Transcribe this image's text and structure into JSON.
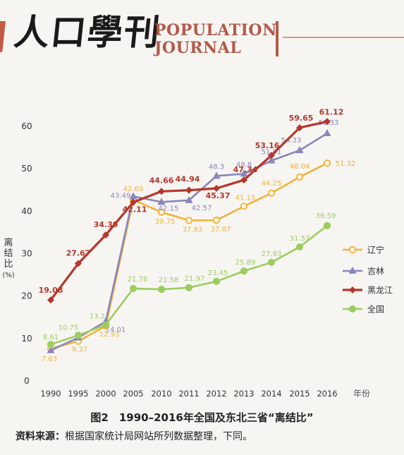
{
  "header": {
    "logo_cn": "人口學刊",
    "logo_en_line1": "POPULATION",
    "logo_en_line2": "JOURNAL"
  },
  "figure": {
    "caption": "图2　1990–2016年全国及东北三省“离结比”",
    "source_label": "资料来源：",
    "source_text": "根据国家统计局网站所列数据整理，下同。"
  },
  "chart_data": {
    "type": "line",
    "categories": [
      "1990",
      "1995",
      "2000",
      "2005",
      "2010",
      "2011",
      "2012",
      "2013",
      "2014",
      "2015",
      "2016"
    ],
    "ylabel": "离结比（%）",
    "xlabel": "年份",
    "ylim": [
      0,
      60
    ],
    "yticks": [
      0,
      10,
      20,
      30,
      40,
      50,
      60
    ],
    "legend_position": "right",
    "grid": false,
    "series": [
      {
        "name": "辽宁",
        "color": "#f2b23a",
        "marker": "circle",
        "values": [
          7.63,
          9.37,
          12.93,
          42.69,
          39.75,
          37.83,
          37.87,
          41.15,
          44.25,
          48.04,
          51.32
        ],
        "labels": [
          "7.63",
          "9.37",
          "12.93",
          "42.69",
          "39.75",
          "37.83",
          "37.87",
          "41.15",
          "44.25",
          "48.04",
          "51.32"
        ]
      },
      {
        "name": "吉林",
        "color": "#8a85bb",
        "marker": "triangle",
        "values": [
          7.2,
          10.2,
          14.01,
          43.49,
          42.15,
          42.57,
          48.3,
          48.8,
          51.91,
          54.33,
          58.33
        ],
        "labels": [
          "",
          "",
          "14.01",
          "43.49",
          "42.15",
          "42.57",
          "48.3",
          "48.8",
          "51.91",
          "54.33",
          "58.33"
        ]
      },
      {
        "name": "黑龙江",
        "color": "#b5362a",
        "marker": "diamond",
        "values": [
          19.08,
          27.67,
          34.39,
          42.11,
          44.66,
          44.94,
          45.37,
          47.34,
          53.16,
          59.65,
          61.12
        ],
        "labels": [
          "19.08",
          "27.67",
          "34.39",
          "42.11",
          "44.66",
          "44.94",
          "45.37",
          "47.34",
          "53.16",
          "59.65",
          "61.12"
        ]
      },
      {
        "name": "全国",
        "color": "#9ccd5f",
        "marker": "circle",
        "values": [
          8.61,
          10.75,
          13.2,
          21.78,
          21.58,
          21.97,
          23.45,
          25.89,
          27.93,
          31.57,
          36.59
        ],
        "labels": [
          "8.61",
          "10.75",
          "13.2",
          "21.78",
          "21.58",
          "21.97",
          "23.45",
          "25.89",
          "27.93",
          "31.57",
          "36.59"
        ]
      }
    ]
  }
}
